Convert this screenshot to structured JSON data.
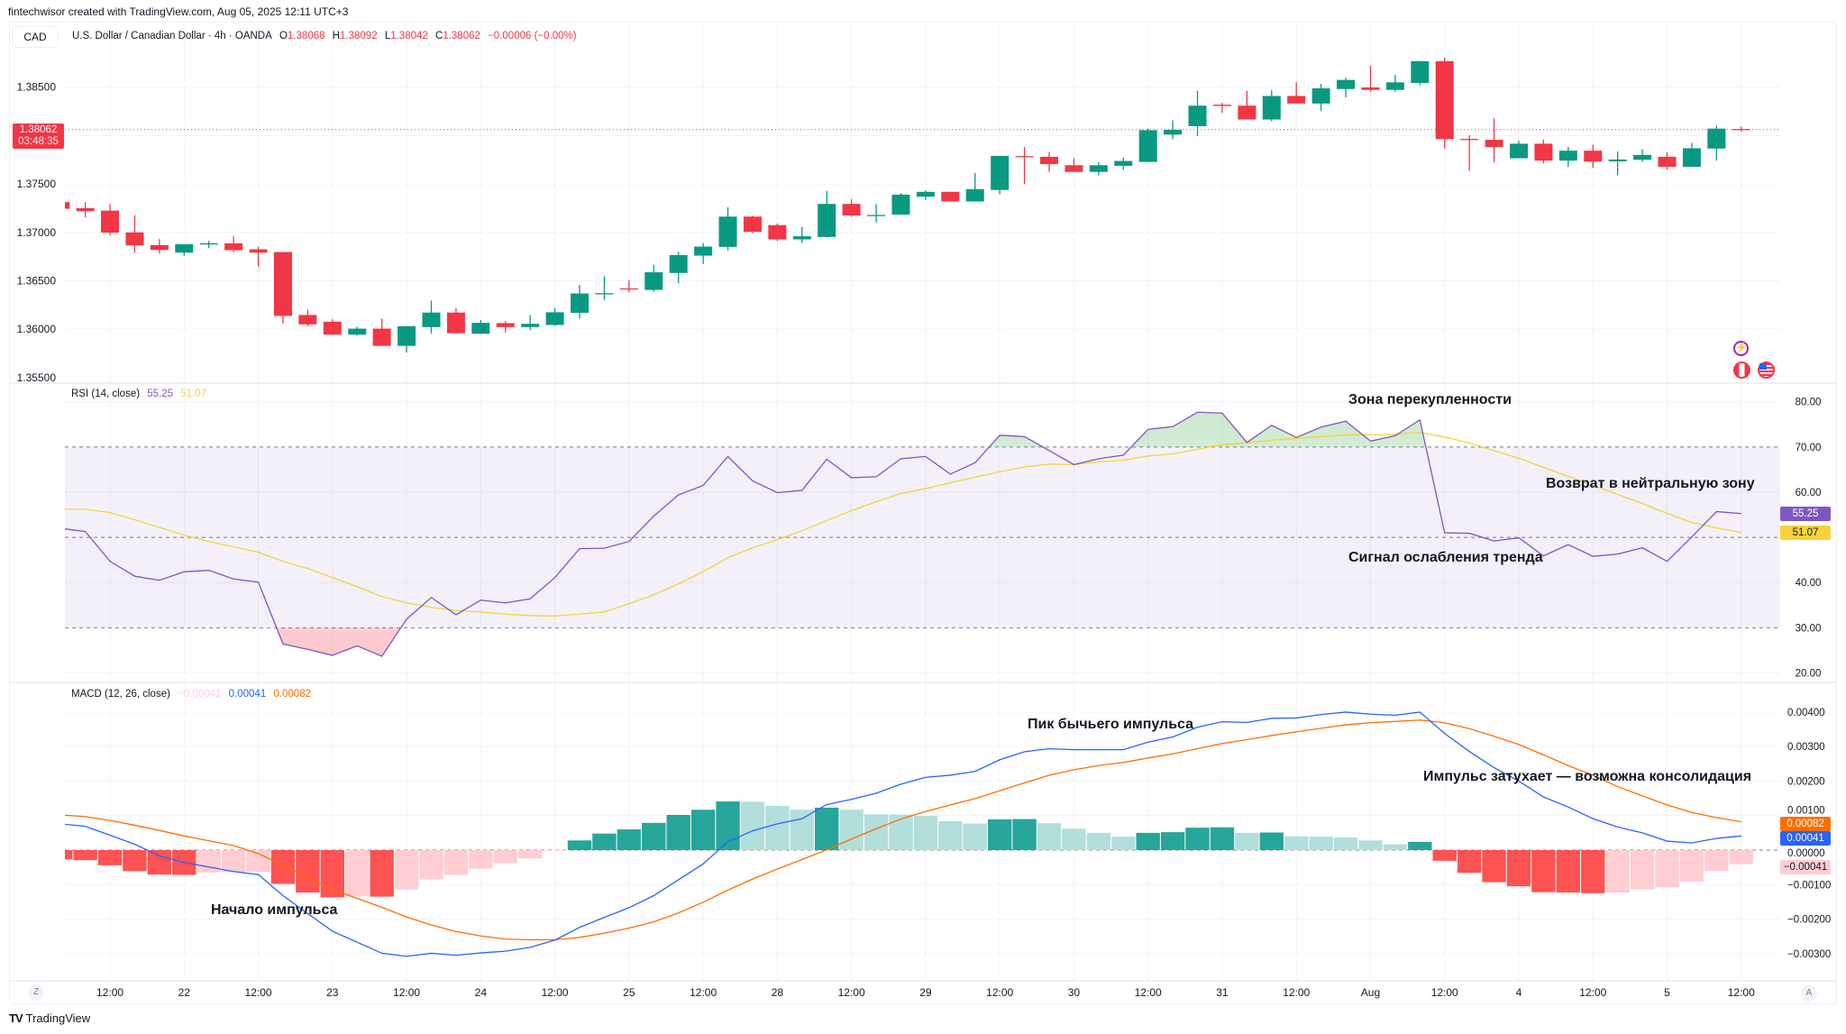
{
  "topline": "fintechwisor created with TradingView.com, Aug 05, 2025 12:11 UTC+3",
  "header": {
    "currency_button": "CAD",
    "symbol_title": "U.S. Dollar / Canadian Dollar · 4h · OANDA",
    "o_label": "O",
    "o_value": "1.38068",
    "h_label": "H",
    "h_value": "1.38092",
    "l_label": "L",
    "l_value": "1.38042",
    "c_label": "C",
    "c_value": "1.38062",
    "change": "−0.00006 (−0.00%)"
  },
  "price_label": {
    "price": "1.38062",
    "countdown": "03:48:35"
  },
  "colors": {
    "up": "#089981",
    "down": "#f23645",
    "rsi": "#7e57c2",
    "rsi_ma": "#f5d33a",
    "macd": "#2962ff",
    "signal": "#ff6d00",
    "hist_up_strong": "#26a69a",
    "hist_up_weak": "#b2dfdb",
    "hist_down_strong": "#ff5252",
    "hist_down_weak": "#ffcdd2"
  },
  "icons": [
    "lightning-event-icon",
    "canada-flag-icon",
    "us-flag-icon"
  ],
  "time_axis": {
    "labels": [
      "12:00",
      "22",
      "12:00",
      "23",
      "12:00",
      "24",
      "12:00",
      "25",
      "12:00",
      "28",
      "12:00",
      "29",
      "12:00",
      "30",
      "12:00",
      "31",
      "12:00",
      "Aug",
      "12:00",
      "4",
      "12:00",
      "5",
      "12:00"
    ],
    "left_button": "Z",
    "right_button": "A"
  },
  "chart_data": [
    {
      "type": "candlestick",
      "title": "U.S. Dollar / Canadian Dollar · 4h · OANDA",
      "ylim": [
        1.355,
        1.3875
      ],
      "yticks": [
        "1.38500",
        "1.37500",
        "1.37000",
        "1.36500",
        "1.36000",
        "1.35500"
      ],
      "ytick_values": [
        1.385,
        1.375,
        1.37,
        1.365,
        1.36,
        1.355
      ],
      "grid_values": [
        1.385,
        1.38,
        1.375,
        1.37,
        1.365,
        1.36,
        1.355
      ],
      "axis_side": "left",
      "last_price": 1.38062,
      "ohlc": [
        [
          1.37313,
          1.37313,
          1.37244,
          1.37244
        ],
        [
          1.3725,
          1.37313,
          1.37156,
          1.37219
        ],
        [
          1.37225,
          1.37291,
          1.36969,
          1.36997
        ],
        [
          1.37,
          1.37178,
          1.36791,
          1.36866
        ],
        [
          1.36869,
          1.36931,
          1.36781,
          1.36819
        ],
        [
          1.36791,
          1.36878,
          1.36759,
          1.36878
        ],
        [
          1.36875,
          1.36913,
          1.36838,
          1.36888
        ],
        [
          1.36888,
          1.3696,
          1.36797,
          1.36816
        ],
        [
          1.36825,
          1.36853,
          1.36647,
          1.36791
        ],
        [
          1.36797,
          1.36797,
          1.3606,
          1.36138
        ],
        [
          1.36147,
          1.36203,
          1.36031,
          1.3605
        ],
        [
          1.36078,
          1.36103,
          1.35944,
          1.35944
        ],
        [
          1.35944,
          1.36028,
          1.35934,
          1.36006
        ],
        [
          1.36006,
          1.36109,
          1.35828,
          1.35828
        ],
        [
          1.35828,
          1.36031,
          1.35759,
          1.36031
        ],
        [
          1.36022,
          1.36297,
          1.35953,
          1.36172
        ],
        [
          1.36172,
          1.36216,
          1.35953,
          1.35959
        ],
        [
          1.35953,
          1.36094,
          1.35953,
          1.36066
        ],
        [
          1.36063,
          1.36084,
          1.35966,
          1.36022
        ],
        [
          1.36022,
          1.36144,
          1.35991,
          1.36056
        ],
        [
          1.36044,
          1.36219,
          1.36034,
          1.36175
        ],
        [
          1.36169,
          1.36456,
          1.3611,
          1.36369
        ],
        [
          1.36369,
          1.36547,
          1.363,
          1.36372
        ],
        [
          1.36422,
          1.36506,
          1.36381,
          1.36419
        ],
        [
          1.36406,
          1.36666,
          1.36388,
          1.36588
        ],
        [
          1.36581,
          1.368,
          1.36475,
          1.36766
        ],
        [
          1.3676,
          1.36891,
          1.36672,
          1.36853
        ],
        [
          1.3685,
          1.3726,
          1.36813,
          1.37163
        ],
        [
          1.37163,
          1.37172,
          1.36991,
          1.37006
        ],
        [
          1.37075,
          1.37091,
          1.3691,
          1.36928
        ],
        [
          1.36928,
          1.37056,
          1.3689,
          1.3696
        ],
        [
          1.36953,
          1.37428,
          1.36947,
          1.37294
        ],
        [
          1.37294,
          1.37344,
          1.3716,
          1.37175
        ],
        [
          1.37172,
          1.37294,
          1.37103,
          1.3718
        ],
        [
          1.37184,
          1.37406,
          1.37184,
          1.3739
        ],
        [
          1.37369,
          1.37434,
          1.37334,
          1.37419
        ],
        [
          1.37419,
          1.37419,
          1.37319,
          1.37319
        ],
        [
          1.37319,
          1.37613,
          1.37319,
          1.37447
        ],
        [
          1.37438,
          1.3779,
          1.37394,
          1.3779
        ],
        [
          1.37788,
          1.37884,
          1.375,
          1.37784
        ],
        [
          1.37781,
          1.37828,
          1.37625,
          1.37706
        ],
        [
          1.37694,
          1.37766,
          1.37625,
          1.37625
        ],
        [
          1.37625,
          1.37725,
          1.37588,
          1.37694
        ],
        [
          1.37688,
          1.37772,
          1.37644,
          1.37738
        ],
        [
          1.37728,
          1.38072,
          1.37728,
          1.38056
        ],
        [
          1.3801,
          1.38157,
          1.37963,
          1.3806
        ],
        [
          1.38097,
          1.38463,
          1.37994,
          1.38309
        ],
        [
          1.38319,
          1.38338,
          1.38234,
          1.38306
        ],
        [
          1.38309,
          1.38463,
          1.38166,
          1.38166
        ],
        [
          1.38166,
          1.38469,
          1.38147,
          1.38409
        ],
        [
          1.38409,
          1.3855,
          1.38331,
          1.38331
        ],
        [
          1.38331,
          1.38534,
          1.38253,
          1.38488
        ],
        [
          1.38481,
          1.38597,
          1.38394,
          1.38575
        ],
        [
          1.38497,
          1.38719,
          1.38453,
          1.38472
        ],
        [
          1.38472,
          1.38628,
          1.38453,
          1.3855
        ],
        [
          1.38544,
          1.38769,
          1.38519,
          1.38769
        ],
        [
          1.38769,
          1.38806,
          1.37863,
          1.37963
        ],
        [
          1.37966,
          1.38003,
          1.37634,
          1.37963
        ],
        [
          1.37956,
          1.38178,
          1.37722,
          1.37881
        ],
        [
          1.37766,
          1.37947,
          1.37766,
          1.37916
        ],
        [
          1.37916,
          1.3796,
          1.37713,
          1.37741
        ],
        [
          1.37741,
          1.37884,
          1.37678,
          1.37844
        ],
        [
          1.37844,
          1.37906,
          1.37666,
          1.37731
        ],
        [
          1.37734,
          1.37838,
          1.3759,
          1.37753
        ],
        [
          1.3775,
          1.37859,
          1.37728,
          1.378
        ],
        [
          1.37781,
          1.37828,
          1.37647,
          1.37678
        ],
        [
          1.37678,
          1.37925,
          1.37678,
          1.37869
        ],
        [
          1.37866,
          1.38103,
          1.37741,
          1.38072
        ],
        [
          1.38068,
          1.38092,
          1.38042,
          1.38062
        ]
      ]
    },
    {
      "type": "line",
      "legend": {
        "name": "RSI (14, close)",
        "rsi": "55.25",
        "ma": "51.07"
      },
      "ylim": [
        18,
        84
      ],
      "yticks": [
        "80.00",
        "70.00",
        "60.00",
        "40.00",
        "30.00",
        "20.00"
      ],
      "ytick_values": [
        80,
        70,
        60,
        40,
        30,
        20
      ],
      "hidden_tick": "50.00",
      "bands": {
        "overbought": 70,
        "middle": 50,
        "oversold": 30
      },
      "last_labels": {
        "rsi": "55.25",
        "ma": "51.07"
      },
      "rsi": [
        52.0,
        51.3,
        44.7,
        41.4,
        40.5,
        42.4,
        42.7,
        40.8,
        40.1,
        26.4,
        25.2,
        23.9,
        26.0,
        23.7,
        31.9,
        36.7,
        32.9,
        36.1,
        35.5,
        36.4,
        41.1,
        47.5,
        47.6,
        49.1,
        54.7,
        59.4,
        61.5,
        67.9,
        62.5,
        59.9,
        60.4,
        67.3,
        63.2,
        63.4,
        67.4,
        67.9,
        64.0,
        66.5,
        72.6,
        72.3,
        69.2,
        66.1,
        67.4,
        68.2,
        73.9,
        74.5,
        77.7,
        77.5,
        71.0,
        74.8,
        72.1,
        74.4,
        75.7,
        71.3,
        72.5,
        76.0,
        51.0,
        50.9,
        49.2,
        49.9,
        45.9,
        48.4,
        45.8,
        46.3,
        47.7,
        44.7,
        50.1,
        55.7,
        55.25
      ],
      "rsi_ma": [
        56.2,
        56.2,
        55.5,
        53.9,
        52.2,
        50.5,
        49.1,
        47.9,
        46.7,
        44.7,
        43.1,
        41.1,
        39.1,
        36.9,
        35.5,
        34.5,
        33.8,
        33.5,
        33.0,
        32.7,
        32.6,
        33.0,
        33.5,
        35.3,
        37.3,
        39.7,
        42.4,
        45.5,
        47.7,
        49.5,
        51.5,
        53.7,
        55.9,
        57.9,
        59.7,
        60.8,
        62.1,
        63.3,
        64.5,
        65.6,
        66.2,
        66.1,
        66.7,
        67.1,
        68.0,
        68.5,
        69.5,
        70.5,
        70.9,
        71.5,
        71.9,
        72.3,
        72.7,
        72.7,
        72.8,
        73.2,
        72.2,
        70.9,
        69.2,
        67.5,
        65.5,
        63.5,
        61.5,
        59.5,
        57.5,
        55.3,
        53.3,
        52.1,
        51.07
      ]
    },
    {
      "type": "bar+line",
      "legend": {
        "name": "MACD (12, 26, close)",
        "hist": "−0.00041",
        "macd": "0.00041",
        "signal": "0.00082"
      },
      "ylim": [
        -0.0034,
        0.0043
      ],
      "yticks": [
        "0.00400",
        "0.00300",
        "0.00200",
        "0.00100",
        "0.00000",
        "−0.00100",
        "−0.00200",
        "−0.00300"
      ],
      "ytick_values": [
        0.004,
        0.003,
        0.002,
        0.001,
        0,
        -0.001,
        -0.002,
        -0.003
      ],
      "last_labels": {
        "signal": "0.00082",
        "macd": "0.00041",
        "hist": "−0.00041"
      },
      "histogram": [
        -0.00027,
        -0.00029,
        -0.00044,
        -0.00061,
        -0.00071,
        -0.00072,
        -0.00065,
        -0.00064,
        -0.00063,
        -0.00098,
        -0.00123,
        -0.00137,
        -0.00134,
        -0.00135,
        -0.00114,
        -0.00085,
        -0.00072,
        -0.00054,
        -0.00038,
        -0.00024,
        -1e-05,
        0.00028,
        0.00048,
        0.0006,
        0.00079,
        0.00102,
        0.00117,
        0.00141,
        0.0014,
        0.00128,
        0.00117,
        0.00123,
        0.00117,
        0.00104,
        0.00103,
        0.00099,
        0.00084,
        0.00077,
        0.00089,
        0.0009,
        0.00078,
        0.00062,
        0.0005,
        0.00039,
        0.0005,
        0.00052,
        0.00065,
        0.00066,
        0.0005,
        0.00051,
        0.0004,
        0.00039,
        0.00037,
        0.00028,
        0.00017,
        0.00024,
        -0.00031,
        -0.00066,
        -0.00093,
        -0.00105,
        -0.00122,
        -0.00123,
        -0.00125,
        -0.00123,
        -0.00114,
        -0.00108,
        -0.00091,
        -0.0006,
        -0.00041
      ],
      "macd": [
        0.00076,
        0.00069,
        0.00043,
        0.00017,
        -0.00017,
        -0.00036,
        -0.00049,
        -0.00062,
        -0.00071,
        -0.00132,
        -0.00184,
        -0.00235,
        -0.00267,
        -0.00299,
        -0.00308,
        -0.00299,
        -0.00305,
        -0.00298,
        -0.00293,
        -0.00282,
        -0.00261,
        -0.00224,
        -0.00195,
        -0.00167,
        -0.00132,
        -0.00086,
        -0.0004,
        0.00024,
        0.00056,
        0.00076,
        0.00091,
        0.00132,
        0.00147,
        0.00165,
        0.00191,
        0.00211,
        0.00217,
        0.00228,
        0.00262,
        0.00285,
        0.00294,
        0.00291,
        0.00291,
        0.00291,
        0.00313,
        0.00328,
        0.00356,
        0.00372,
        0.0037,
        0.00382,
        0.00383,
        0.00393,
        0.004,
        0.00394,
        0.00391,
        0.004,
        0.00338,
        0.00286,
        0.00239,
        0.002,
        0.00154,
        0.00125,
        0.00091,
        0.00067,
        0.0005,
        0.00026,
        0.00021,
        0.00034,
        0.00041
      ],
      "signal": [
        0.00102,
        0.00097,
        0.00086,
        0.00072,
        0.00057,
        0.00041,
        0.00027,
        0.00013,
        -0.0001,
        -0.00044,
        -0.00079,
        -0.00114,
        -0.0014,
        -0.00166,
        -0.00194,
        -0.00217,
        -0.00236,
        -0.00249,
        -0.00258,
        -0.0026,
        -0.0026,
        -0.00253,
        -0.00241,
        -0.00226,
        -0.00208,
        -0.00182,
        -0.00151,
        -0.00116,
        -0.00084,
        -0.00055,
        -0.00027,
        1e-05,
        0.00032,
        0.00062,
        0.0009,
        0.00112,
        0.00131,
        0.00149,
        0.00172,
        0.00195,
        0.00217,
        0.00233,
        0.00245,
        0.00254,
        0.00267,
        0.00279,
        0.00294,
        0.00309,
        0.0032,
        0.00332,
        0.00343,
        0.00353,
        0.00363,
        0.00369,
        0.00373,
        0.00377,
        0.00369,
        0.00352,
        0.0033,
        0.00306,
        0.00276,
        0.00245,
        0.00217,
        0.00184,
        0.00157,
        0.00131,
        0.00109,
        0.00094,
        0.00082
      ]
    }
  ],
  "annotations": {
    "overbought": "Зона перекупленности",
    "neutral_return": "Возврат в нейтральную зону",
    "trend_weakening": "Сигнал ослабления тренда",
    "impulse_start": "Начало импульса",
    "bull_peak": "Пик бычьего импульса",
    "impulse_fading": "Импульс затухает — возможна консолидация"
  },
  "footer": {
    "logo_text": "TradingView"
  }
}
